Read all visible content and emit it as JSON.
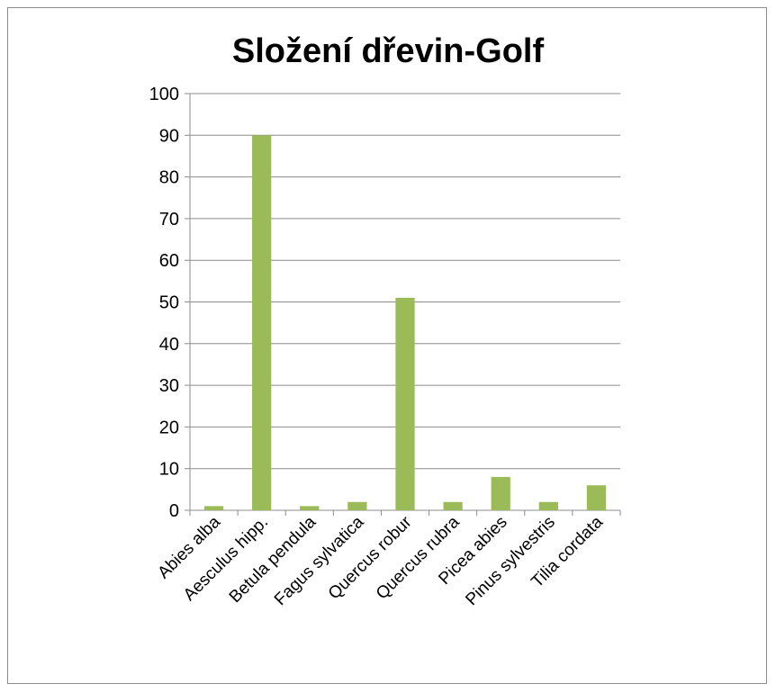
{
  "chart_data": {
    "type": "bar",
    "title": "Složení dřevin-Golf",
    "xlabel": "",
    "ylabel": "",
    "categories": [
      "Abies alba",
      "Aesculus hipp.",
      "Betula pendula",
      "Fagus sylvatica",
      "Quercus robur",
      "Quercus rubra",
      "Picea abies",
      "Pinus sylvestris",
      "Tilia cordata"
    ],
    "values": [
      1,
      90,
      1,
      2,
      51,
      2,
      8,
      2,
      6
    ],
    "ylim": [
      0,
      100
    ],
    "yticks": [
      0,
      10,
      20,
      30,
      40,
      50,
      60,
      70,
      80,
      90,
      100
    ],
    "grid": true,
    "legend": "none",
    "bar_color": "#9bbb59"
  }
}
